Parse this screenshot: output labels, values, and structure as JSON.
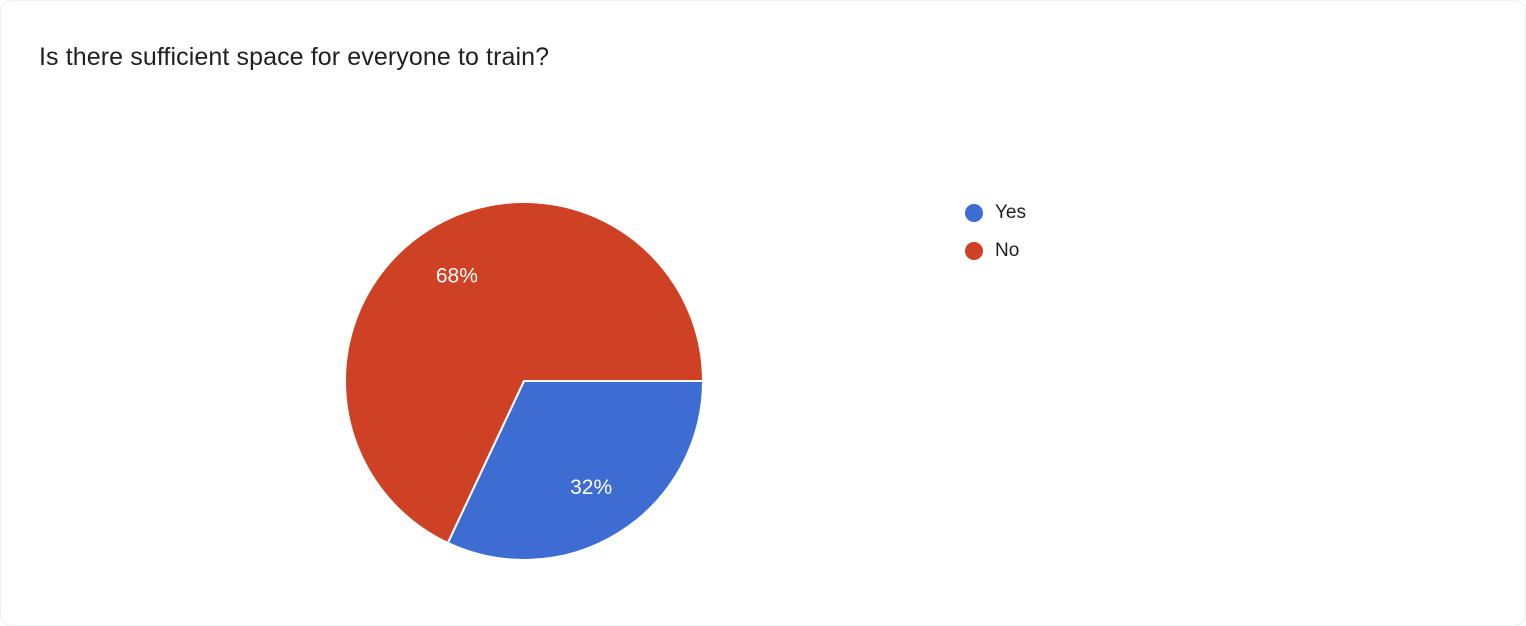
{
  "chart_data": {
    "type": "pie",
    "title": "Is there sufficient space for everyone to train?",
    "labels": [
      "Yes",
      "No"
    ],
    "values": [
      32,
      68
    ],
    "value_labels": [
      "32%",
      "68%"
    ],
    "colors": [
      "#3d6dd2",
      "#cf4125"
    ],
    "slice_label_color": "#ffffff",
    "slice_stroke_color": "#ffffff",
    "legend_position": "right",
    "start_angle_deg": 0,
    "angle_reference": "east-clockwise",
    "label_radius_ratio": 0.7
  },
  "legend": {
    "items": [
      {
        "label": "Yes",
        "color": "#3d6dd2"
      },
      {
        "label": "No",
        "color": "#cf4125"
      }
    ]
  }
}
